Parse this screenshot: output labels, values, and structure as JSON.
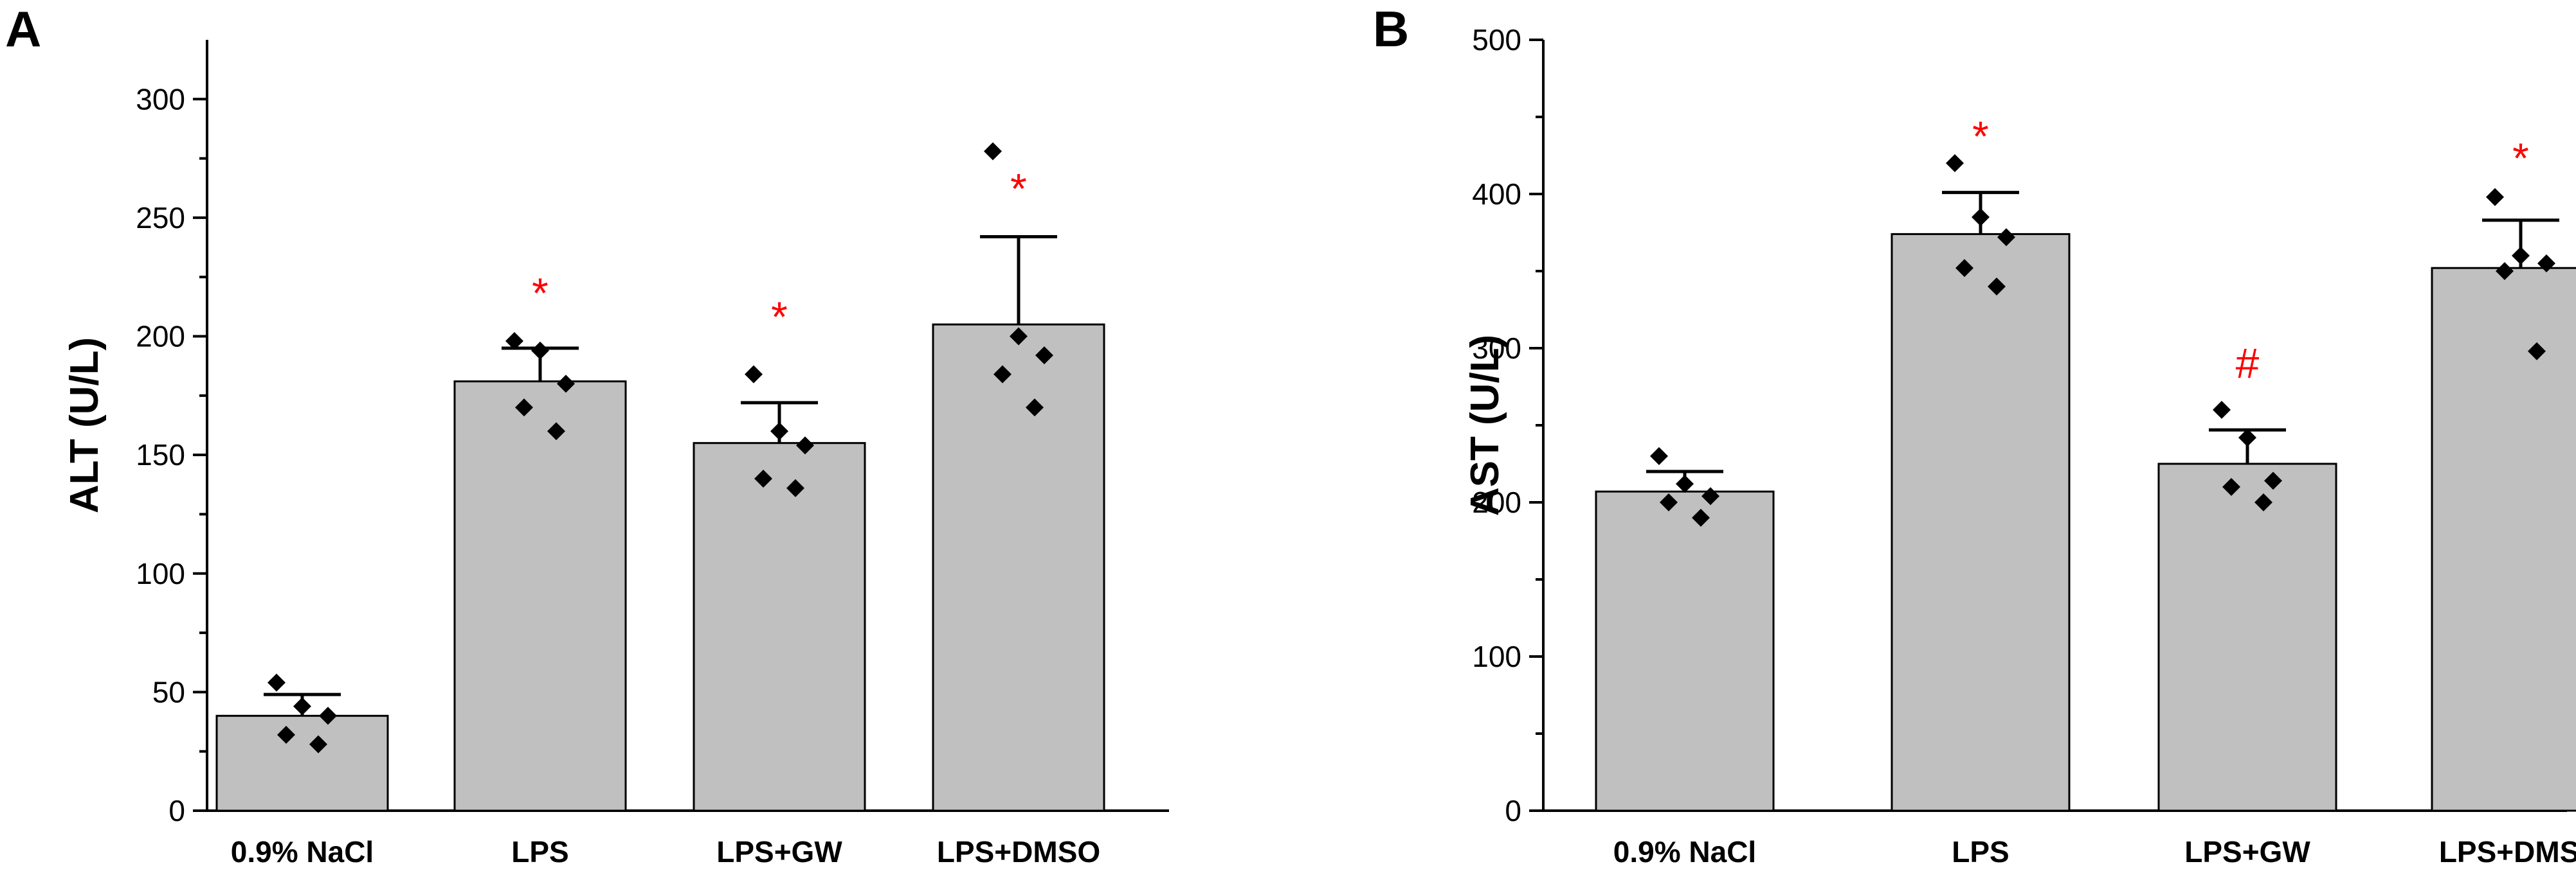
{
  "chart_data": [
    {
      "panel": "A",
      "type": "bar",
      "title": "",
      "xlabel": "",
      "ylabel": "ALT (U/L)",
      "ylim": [
        0,
        325
      ],
      "yticks": [
        0,
        50,
        100,
        150,
        200,
        250,
        300
      ],
      "categories": [
        "0.9% NaCl",
        "LPS",
        "LPS+GW",
        "LPS+DMSO"
      ],
      "values": [
        40,
        181,
        155,
        205
      ],
      "error_upper": [
        49,
        195,
        172,
        242
      ],
      "points": [
        [
          54,
          44,
          40,
          32,
          28
        ],
        [
          198,
          194,
          180,
          170,
          160
        ],
        [
          184,
          160,
          154,
          140,
          136
        ],
        [
          278,
          200,
          192,
          184,
          170
        ]
      ],
      "annotations": [
        "",
        "*",
        "*",
        "*"
      ],
      "annotation_y": [
        null,
        218,
        208,
        262
      ],
      "bar_color": "#c0c0c0",
      "annotation_color": "#ff0000"
    },
    {
      "panel": "B",
      "type": "bar",
      "title": "",
      "xlabel": "",
      "ylabel": "AST (U/L)",
      "ylim": [
        0,
        500
      ],
      "yticks": [
        0,
        100,
        200,
        300,
        400,
        500
      ],
      "categories": [
        "0.9% NaCl",
        "LPS",
        "LPS+GW",
        "LPS+DMSO"
      ],
      "values": [
        207,
        374,
        225,
        352
      ],
      "error_upper": [
        220,
        401,
        247,
        383
      ],
      "points": [
        [
          230,
          212,
          204,
          200,
          190
        ],
        [
          420,
          385,
          372,
          352,
          340
        ],
        [
          260,
          242,
          214,
          210,
          200
        ],
        [
          398,
          360,
          355,
          350,
          298
        ]
      ],
      "annotations": [
        "",
        "*",
        "#",
        "*"
      ],
      "annotation_y": [
        null,
        437,
        290,
        423
      ],
      "bar_color": "#c0c0c0",
      "annotation_color": "#ff0000"
    }
  ]
}
